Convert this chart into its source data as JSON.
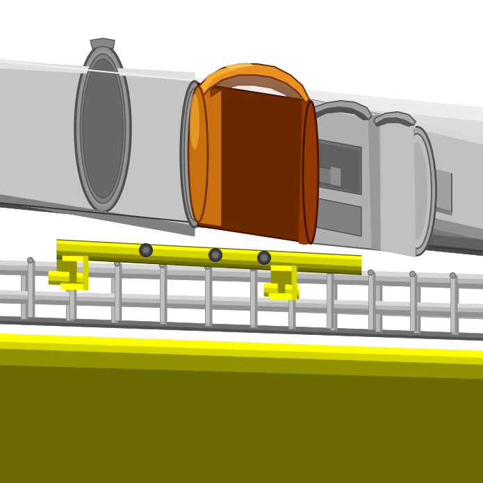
{
  "background_color": "#ffffff",
  "figsize": [
    6.95,
    6.95
  ],
  "dpi": 100,
  "pipe_top_light": "#d8d8d8",
  "pipe_top_mid": "#c0c0c0",
  "pipe_side_light": "#b8b8b8",
  "pipe_side_mid": "#a0a0a0",
  "pipe_side_dark": "#808080",
  "pipe_bottom": "#707070",
  "pipe_edge": "#606060",
  "pipe_dark_edge": "#404040",
  "orange_bright": "#f8b030",
  "orange_light": "#e89020",
  "orange_mid": "#c87010",
  "orange_dark": "#903800",
  "orange_shadow": "#6a2800",
  "yellow_top": "#ffff00",
  "yellow_mid": "#d4d400",
  "yellow_dark": "#909000",
  "yellow_olive": "#6a6a00",
  "gray_light": "#d0d0d0",
  "gray_mid": "#b0b0b0",
  "gray_dark": "#888888",
  "gray_darker": "#606060",
  "fence_gray": "#aaaaaa",
  "fence_dark": "#707070",
  "white": "#ffffff"
}
